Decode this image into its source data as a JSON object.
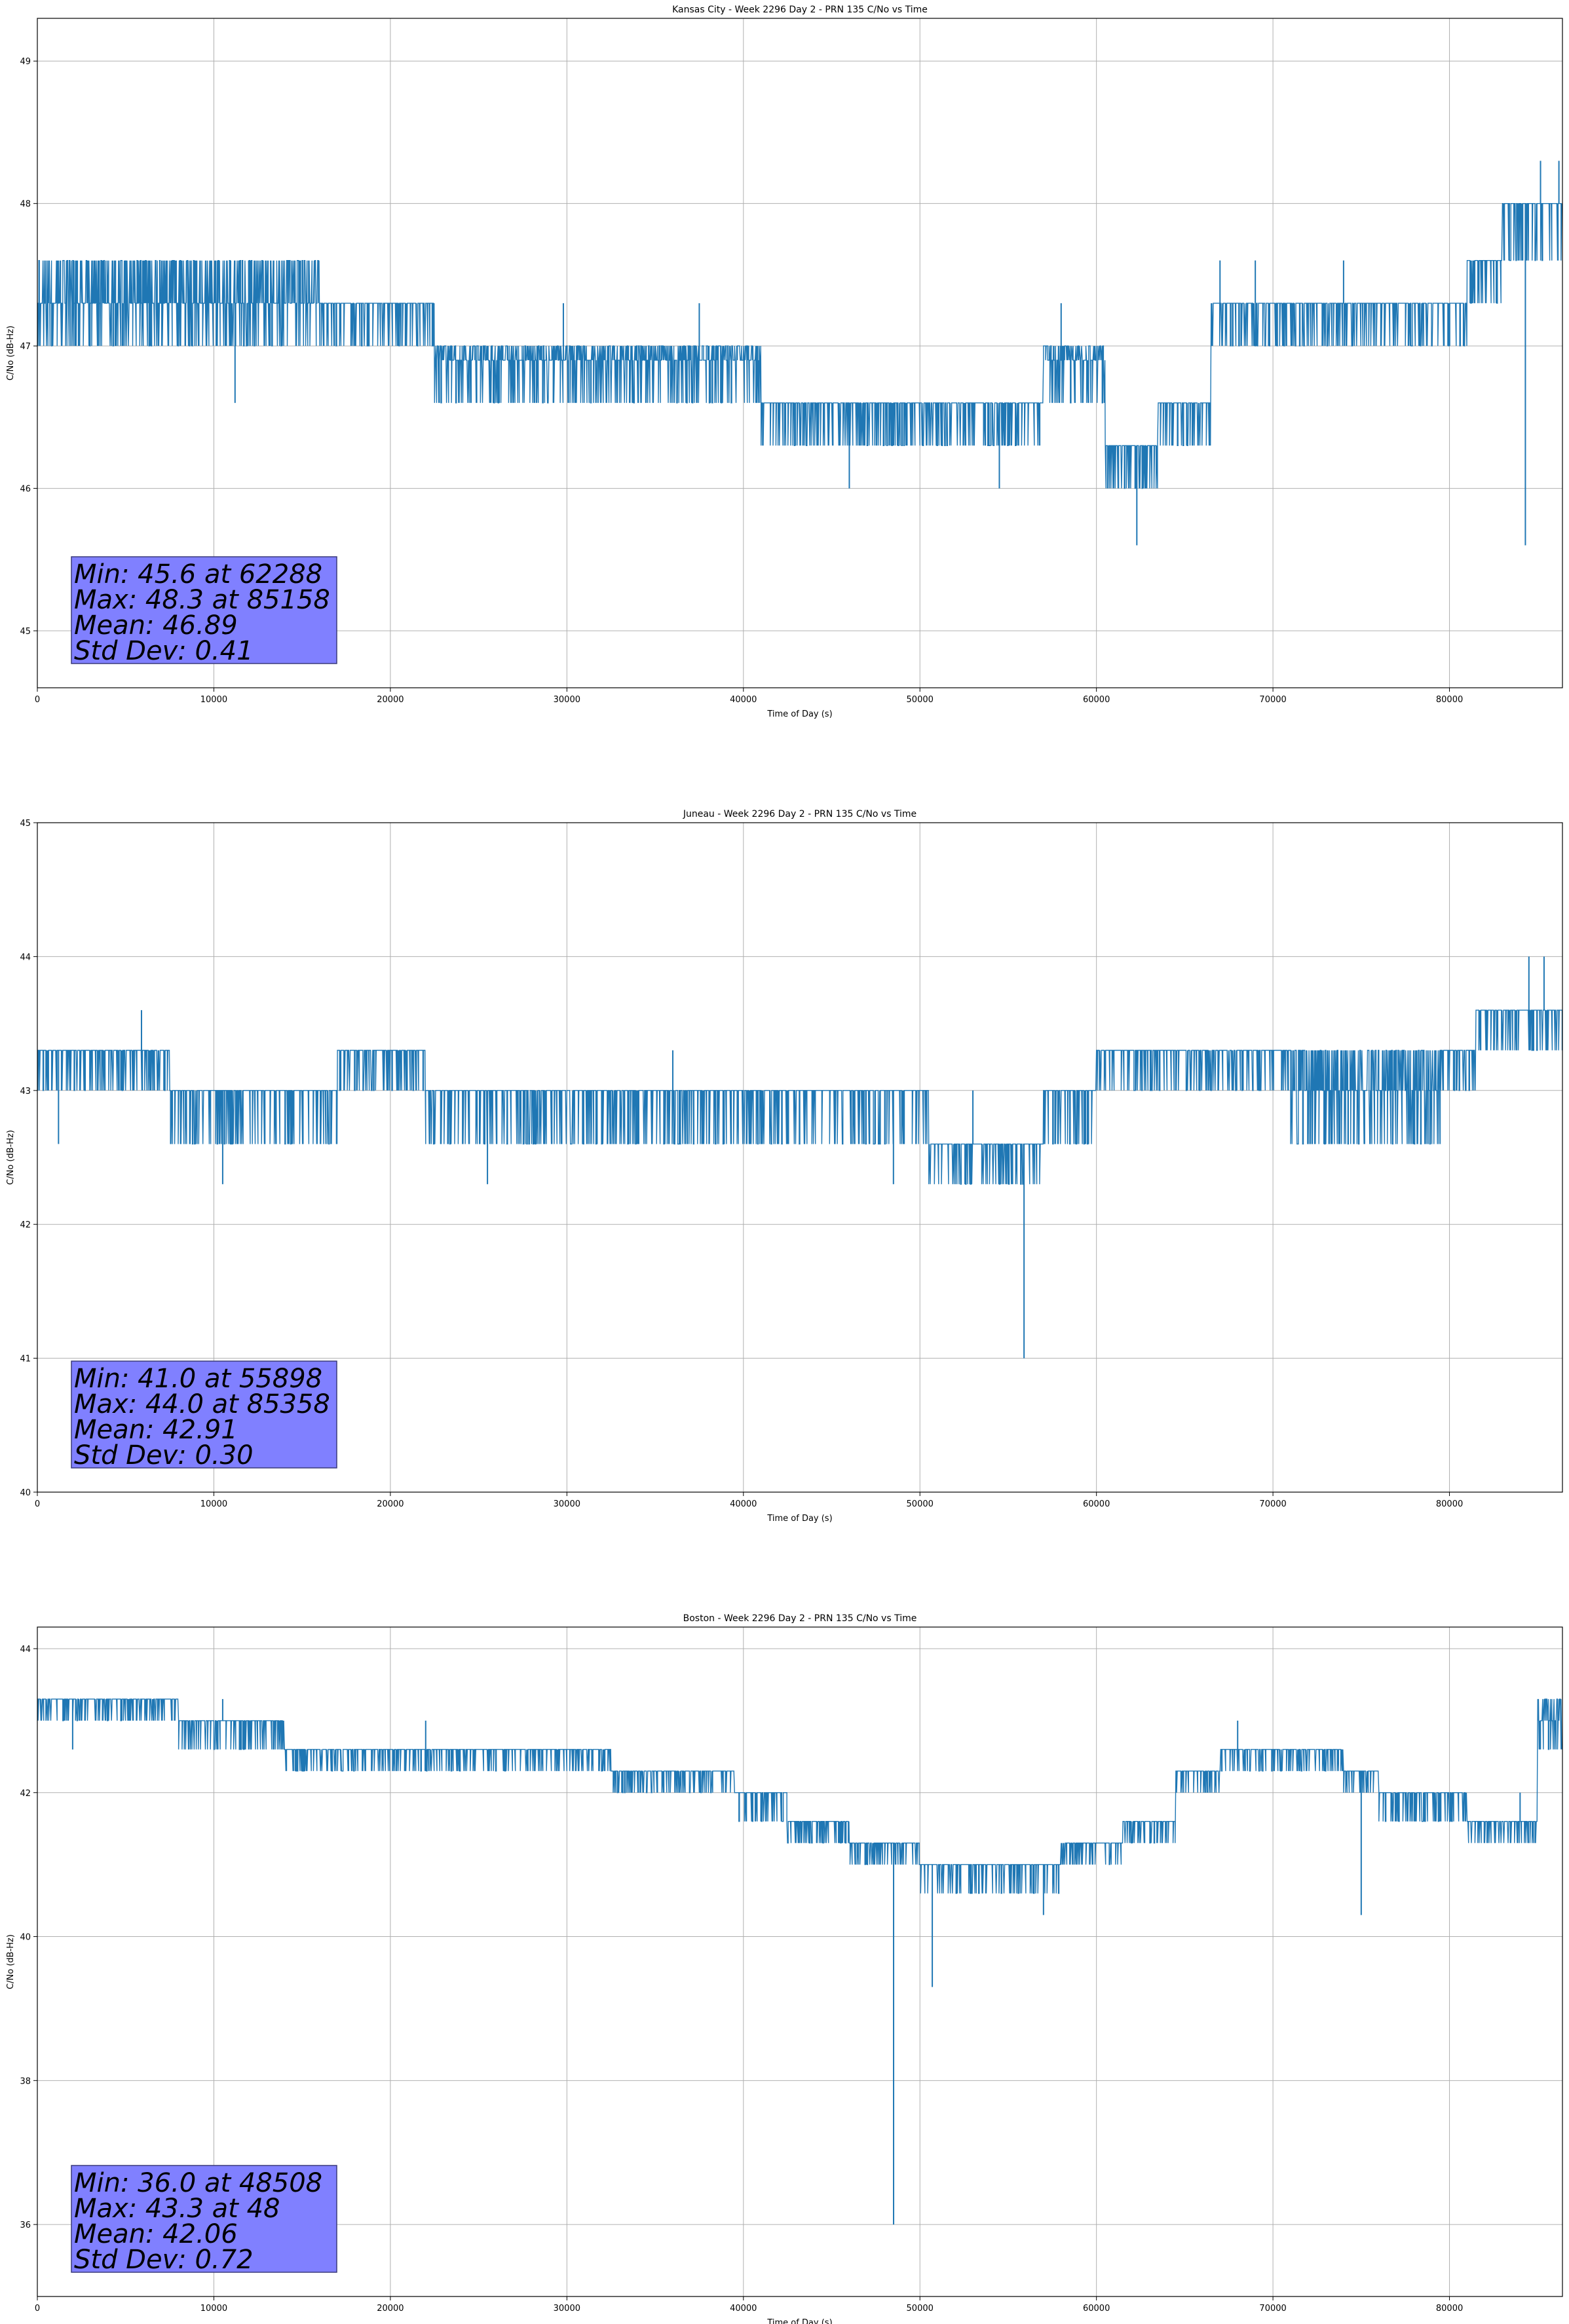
{
  "colors": {
    "line": "#1f77b4",
    "grid": "#b0b0b0",
    "stats_box": "#8080ff",
    "stats_box_edge": "#3a3a7a"
  },
  "chart_data": [
    {
      "type": "line",
      "title": "Kansas City - Week 2296 Day 2 - PRN 135 C/No vs Time",
      "xlabel": "Time of Day (s)",
      "ylabel": "C/No (dB-Hz)",
      "xlim": [
        0,
        86400
      ],
      "ylim": [
        44.6,
        49.3
      ],
      "xticks": [
        0,
        10000,
        20000,
        30000,
        40000,
        50000,
        60000,
        70000,
        80000
      ],
      "yticks": [
        45,
        46,
        47,
        48,
        49
      ],
      "grid": true,
      "stats": [
        "Min: 45.6 at 62288",
        "Max: 48.3 at 85158",
        "Mean: 46.89",
        "Std Dev: 0.41"
      ],
      "levels": [
        {
          "x0": 0,
          "x1": 16000,
          "lo": 47.0,
          "mid": 47.3,
          "hi": 47.6
        },
        {
          "x0": 16000,
          "x1": 22500,
          "lo": 47.0,
          "mid": 47.3,
          "hi": 47.3
        },
        {
          "x0": 22500,
          "x1": 41000,
          "lo": 46.6,
          "mid": 46.9,
          "hi": 47.0
        },
        {
          "x0": 41000,
          "x1": 57000,
          "lo": 46.3,
          "mid": 46.6,
          "hi": 46.6
        },
        {
          "x0": 57000,
          "x1": 60500,
          "lo": 46.6,
          "mid": 46.9,
          "hi": 47.0
        },
        {
          "x0": 60500,
          "x1": 63500,
          "lo": 46.0,
          "mid": 46.3,
          "hi": 46.3
        },
        {
          "x0": 63500,
          "x1": 66500,
          "lo": 46.3,
          "mid": 46.6,
          "hi": 46.6
        },
        {
          "x0": 66500,
          "x1": 81000,
          "lo": 47.0,
          "mid": 47.3,
          "hi": 47.3
        },
        {
          "x0": 81000,
          "x1": 83000,
          "lo": 47.3,
          "mid": 47.6,
          "hi": 47.6
        },
        {
          "x0": 83000,
          "x1": 86400,
          "lo": 47.6,
          "mid": 48.0,
          "hi": 48.0
        }
      ],
      "spikes": [
        {
          "x": 11200,
          "y": 46.6
        },
        {
          "x": 29800,
          "y": 47.3
        },
        {
          "x": 37500,
          "y": 47.3
        },
        {
          "x": 46000,
          "y": 46.0
        },
        {
          "x": 54500,
          "y": 46.0
        },
        {
          "x": 58000,
          "y": 47.3
        },
        {
          "x": 62288,
          "y": 45.6
        },
        {
          "x": 67000,
          "y": 47.6
        },
        {
          "x": 69000,
          "y": 47.6
        },
        {
          "x": 74000,
          "y": 47.6
        },
        {
          "x": 84300,
          "y": 45.6
        },
        {
          "x": 85158,
          "y": 48.3
        },
        {
          "x": 86200,
          "y": 48.3
        },
        {
          "x": 5000,
          "y": 47.6
        }
      ]
    },
    {
      "type": "line",
      "title": "Juneau - Week 2296 Day 2 - PRN 135 C/No vs Time",
      "xlabel": "Time of Day (s)",
      "ylabel": "C/No (dB-Hz)",
      "xlim": [
        0,
        86400
      ],
      "ylim": [
        40,
        45
      ],
      "xticks": [
        0,
        10000,
        20000,
        30000,
        40000,
        50000,
        60000,
        70000,
        80000
      ],
      "yticks": [
        40,
        41,
        42,
        43,
        44,
        45
      ],
      "grid": true,
      "stats": [
        "Min: 41.0 at 55898",
        "Max: 44.0 at 85358",
        "Mean: 42.91",
        "Std Dev: 0.30"
      ],
      "levels": [
        {
          "x0": 0,
          "x1": 7500,
          "lo": 43.0,
          "mid": 43.3,
          "hi": 43.3
        },
        {
          "x0": 7500,
          "x1": 17000,
          "lo": 42.6,
          "mid": 43.0,
          "hi": 43.0
        },
        {
          "x0": 17000,
          "x1": 22000,
          "lo": 43.0,
          "mid": 43.3,
          "hi": 43.3
        },
        {
          "x0": 22000,
          "x1": 50500,
          "lo": 42.6,
          "mid": 43.0,
          "hi": 43.0
        },
        {
          "x0": 50500,
          "x1": 57000,
          "lo": 42.3,
          "mid": 42.6,
          "hi": 42.6
        },
        {
          "x0": 57000,
          "x1": 60000,
          "lo": 42.6,
          "mid": 43.0,
          "hi": 43.0
        },
        {
          "x0": 60000,
          "x1": 71000,
          "lo": 43.0,
          "mid": 43.3,
          "hi": 43.3
        },
        {
          "x0": 71000,
          "x1": 79500,
          "lo": 42.6,
          "mid": 43.0,
          "hi": 43.3
        },
        {
          "x0": 79500,
          "x1": 81500,
          "lo": 43.0,
          "mid": 43.3,
          "hi": 43.3
        },
        {
          "x0": 81500,
          "x1": 86400,
          "lo": 43.3,
          "mid": 43.6,
          "hi": 43.6
        }
      ],
      "spikes": [
        {
          "x": 1200,
          "y": 42.6
        },
        {
          "x": 5900,
          "y": 43.6
        },
        {
          "x": 10500,
          "y": 42.3
        },
        {
          "x": 25500,
          "y": 42.3
        },
        {
          "x": 36000,
          "y": 43.3
        },
        {
          "x": 48500,
          "y": 42.3
        },
        {
          "x": 53000,
          "y": 43.0
        },
        {
          "x": 55898,
          "y": 41.0
        },
        {
          "x": 84500,
          "y": 44.0
        },
        {
          "x": 85358,
          "y": 44.0
        }
      ]
    },
    {
      "type": "line",
      "title": "Boston - Week 2296 Day 2 - PRN 135 C/No vs Time",
      "xlabel": "Time of Day (s)",
      "ylabel": "C/No (dB-Hz)",
      "xlim": [
        0,
        86400
      ],
      "ylim": [
        35,
        44.3
      ],
      "xticks": [
        0,
        10000,
        20000,
        30000,
        40000,
        50000,
        60000,
        70000,
        80000
      ],
      "yticks": [
        36,
        38,
        40,
        42,
        44
      ],
      "grid": true,
      "stats": [
        "Min: 36.0 at 48508",
        "Max: 43.3 at 48",
        "Mean: 42.06",
        "Std Dev: 0.72"
      ],
      "levels": [
        {
          "x0": 0,
          "x1": 8000,
          "lo": 43.0,
          "mid": 43.3,
          "hi": 43.3
        },
        {
          "x0": 8000,
          "x1": 14000,
          "lo": 42.6,
          "mid": 43.0,
          "hi": 43.0
        },
        {
          "x0": 14000,
          "x1": 32500,
          "lo": 42.3,
          "mid": 42.6,
          "hi": 42.6
        },
        {
          "x0": 32500,
          "x1": 39500,
          "lo": 42.0,
          "mid": 42.3,
          "hi": 42.3
        },
        {
          "x0": 39500,
          "x1": 42500,
          "lo": 41.6,
          "mid": 42.0,
          "hi": 42.0
        },
        {
          "x0": 42500,
          "x1": 46000,
          "lo": 41.3,
          "mid": 41.6,
          "hi": 41.6
        },
        {
          "x0": 46000,
          "x1": 50000,
          "lo": 41.0,
          "mid": 41.3,
          "hi": 41.3
        },
        {
          "x0": 50000,
          "x1": 58000,
          "lo": 40.6,
          "mid": 41.0,
          "hi": 41.0
        },
        {
          "x0": 58000,
          "x1": 61500,
          "lo": 41.0,
          "mid": 41.3,
          "hi": 41.3
        },
        {
          "x0": 61500,
          "x1": 64500,
          "lo": 41.3,
          "mid": 41.6,
          "hi": 41.6
        },
        {
          "x0": 64500,
          "x1": 67000,
          "lo": 42.0,
          "mid": 42.3,
          "hi": 42.3
        },
        {
          "x0": 67000,
          "x1": 74000,
          "lo": 42.3,
          "mid": 42.6,
          "hi": 42.6
        },
        {
          "x0": 74000,
          "x1": 76000,
          "lo": 42.0,
          "mid": 42.3,
          "hi": 42.3
        },
        {
          "x0": 76000,
          "x1": 81000,
          "lo": 41.6,
          "mid": 42.0,
          "hi": 42.0
        },
        {
          "x0": 81000,
          "x1": 85000,
          "lo": 41.3,
          "mid": 41.6,
          "hi": 41.6
        },
        {
          "x0": 85000,
          "x1": 86400,
          "lo": 42.6,
          "mid": 43.0,
          "hi": 43.3
        }
      ],
      "spikes": [
        {
          "x": 2000,
          "y": 42.6
        },
        {
          "x": 10500,
          "y": 43.3
        },
        {
          "x": 22000,
          "y": 43.0
        },
        {
          "x": 48508,
          "y": 36.0
        },
        {
          "x": 50700,
          "y": 39.3
        },
        {
          "x": 57000,
          "y": 40.3
        },
        {
          "x": 68000,
          "y": 43.0
        },
        {
          "x": 75000,
          "y": 40.3
        },
        {
          "x": 48,
          "y": 43.3
        },
        {
          "x": 84000,
          "y": 42.0
        }
      ]
    }
  ]
}
